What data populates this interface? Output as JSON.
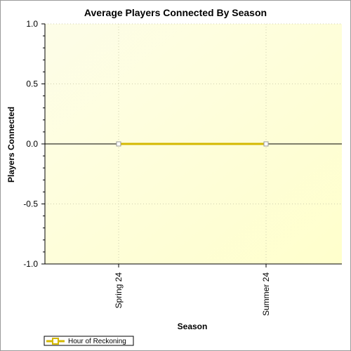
{
  "chart_data": {
    "type": "line",
    "title": "Average Players Connected By Season",
    "xlabel": "Season",
    "ylabel": "Players Connected",
    "categories": [
      "Spring 24",
      "Summer 24"
    ],
    "series": [
      {
        "name": "Hour of Reckoning",
        "values": [
          0,
          0
        ],
        "color": "#d4b800"
      }
    ],
    "ylim": [
      -1.0,
      1.0
    ],
    "yticks": [
      "1.0",
      "0.5",
      "0.0",
      "-0.5",
      "-1.0"
    ],
    "ytick_values": [
      1.0,
      0.5,
      0.0,
      -0.5,
      -1.0
    ],
    "grid": true,
    "legend_position": "bottom-left",
    "plot_background": [
      "#fdfde8",
      "#ffffcc"
    ]
  }
}
